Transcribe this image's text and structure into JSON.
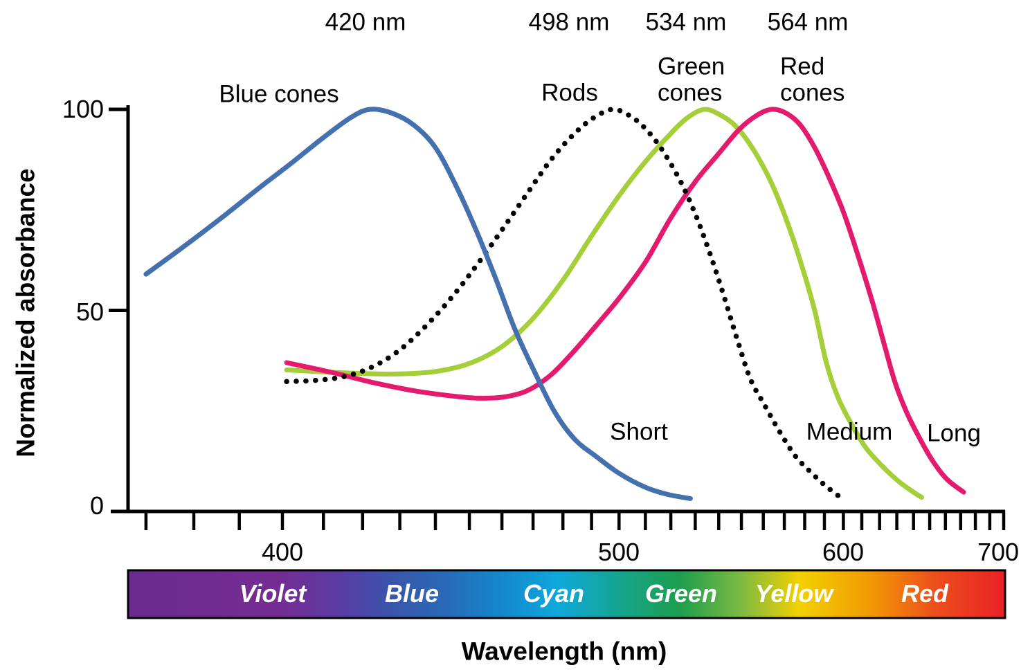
{
  "chart_data": {
    "type": "line",
    "title": "",
    "xlabel": "Wavelength (nm)",
    "ylabel": "Normalized absorbance",
    "x_axis": {
      "scale": "linear-in-inverse-wavelength",
      "major_ticks": [
        400,
        500,
        600,
        700
      ],
      "minor_tick_step_nm": 10,
      "minor_tick_start_nm": 370,
      "minor_tick_end_nm": 700,
      "grid": false
    },
    "y_axis": {
      "ticks": [
        100,
        50,
        0
      ],
      "range": [
        0,
        100
      ],
      "grid": false
    },
    "legend_position": "inline-labels",
    "series": [
      {
        "name": "Blue cones",
        "peak_label": "420 nm",
        "peak_nm": 420,
        "receptor_label": "Short",
        "color": "#4471ad",
        "line_style": "solid",
        "points": [
          [
            370,
            59
          ],
          [
            378,
            66
          ],
          [
            386,
            73
          ],
          [
            394,
            80
          ],
          [
            402,
            86.5
          ],
          [
            410,
            93
          ],
          [
            417,
            98
          ],
          [
            422,
            100
          ],
          [
            428,
            99
          ],
          [
            434,
            96
          ],
          [
            440,
            90.5
          ],
          [
            446,
            81
          ],
          [
            452,
            70
          ],
          [
            458,
            58
          ],
          [
            464,
            45.5
          ],
          [
            470,
            35.5
          ],
          [
            477,
            25
          ],
          [
            484,
            18
          ],
          [
            492,
            13.5
          ],
          [
            500,
            9.5
          ],
          [
            510,
            6
          ],
          [
            519,
            4.2
          ],
          [
            528,
            3.2
          ]
        ]
      },
      {
        "name": "Rods",
        "peak_label": "498 nm",
        "peak_nm": 498,
        "receptor_label": "",
        "color": "#000000",
        "line_style": "dotted",
        "points": [
          [
            401,
            32.3
          ],
          [
            408,
            32.6
          ],
          [
            415,
            33.5
          ],
          [
            422,
            35.7
          ],
          [
            429,
            39.5
          ],
          [
            436,
            45
          ],
          [
            444,
            52.5
          ],
          [
            452,
            61
          ],
          [
            460,
            70
          ],
          [
            468,
            79
          ],
          [
            476,
            87.5
          ],
          [
            484,
            94
          ],
          [
            491,
            98
          ],
          [
            498,
            100
          ],
          [
            505,
            98
          ],
          [
            511,
            94.5
          ],
          [
            517,
            89.5
          ],
          [
            524,
            82
          ],
          [
            530,
            74
          ],
          [
            536,
            64.5
          ],
          [
            542,
            54
          ],
          [
            548,
            43
          ],
          [
            554,
            33
          ],
          [
            560,
            27
          ],
          [
            567,
            20.5
          ],
          [
            575,
            14
          ],
          [
            583,
            9.8
          ],
          [
            591,
            6.2
          ],
          [
            600,
            3
          ]
        ]
      },
      {
        "name": "Green cones",
        "label_lines": [
          "Green",
          "cones"
        ],
        "peak_label": "534 nm",
        "peak_nm": 534,
        "receptor_label": "Medium",
        "color": "#a6ce39",
        "line_style": "solid",
        "points": [
          [
            401,
            35.2
          ],
          [
            410,
            34.7
          ],
          [
            420,
            34.3
          ],
          [
            430,
            34.2
          ],
          [
            440,
            34.8
          ],
          [
            450,
            36.8
          ],
          [
            460,
            41
          ],
          [
            470,
            48
          ],
          [
            480,
            57.5
          ],
          [
            490,
            68.5
          ],
          [
            500,
            78.5
          ],
          [
            510,
            87
          ],
          [
            520,
            94
          ],
          [
            527,
            98
          ],
          [
            534,
            100
          ],
          [
            541,
            98.5
          ],
          [
            548,
            95.5
          ],
          [
            556,
            89.5
          ],
          [
            564,
            81.5
          ],
          [
            571,
            72.5
          ],
          [
            578,
            62
          ],
          [
            585,
            50
          ],
          [
            591,
            37
          ],
          [
            597,
            28.5
          ],
          [
            604,
            22
          ],
          [
            612,
            16
          ],
          [
            621,
            11.5
          ],
          [
            631,
            7.5
          ],
          [
            640,
            4.8
          ],
          [
            645,
            3.5
          ]
        ]
      },
      {
        "name": "Red cones",
        "label_lines": [
          "Red",
          "cones"
        ],
        "peak_label": "564 nm",
        "peak_nm": 564,
        "receptor_label": "Long",
        "color": "#e41a6e",
        "line_style": "solid",
        "points": [
          [
            401,
            37
          ],
          [
            412,
            34.6
          ],
          [
            423,
            32
          ],
          [
            434,
            30
          ],
          [
            444,
            28.8
          ],
          [
            452,
            28.2
          ],
          [
            460,
            28.4
          ],
          [
            468,
            30
          ],
          [
            476,
            34
          ],
          [
            484,
            40
          ],
          [
            492,
            46.5
          ],
          [
            500,
            53
          ],
          [
            510,
            62
          ],
          [
            520,
            73
          ],
          [
            530,
            82
          ],
          [
            540,
            89
          ],
          [
            549,
            95
          ],
          [
            557,
            98.5
          ],
          [
            564,
            100
          ],
          [
            571,
            99
          ],
          [
            578,
            96
          ],
          [
            585,
            90.5
          ],
          [
            592,
            83.5
          ],
          [
            600,
            74.5
          ],
          [
            608,
            63.5
          ],
          [
            616,
            52
          ],
          [
            623,
            41
          ],
          [
            629,
            32
          ],
          [
            636,
            24.5
          ],
          [
            644,
            18
          ],
          [
            652,
            12.5
          ],
          [
            661,
            8
          ],
          [
            672,
            4.8
          ]
        ]
      }
    ],
    "spectrum_bar": {
      "labels": [
        "Violet",
        "Blue",
        "Cyan",
        "Green",
        "Yellow",
        "Red"
      ],
      "border_color": "#000000",
      "gradient_stops": [
        {
          "pos": 0.0,
          "color": "#6b2a8f"
        },
        {
          "pos": 0.17,
          "color": "#742c93"
        },
        {
          "pos": 0.24,
          "color": "#5b3ba2"
        },
        {
          "pos": 0.3,
          "color": "#3a55ab"
        },
        {
          "pos": 0.36,
          "color": "#2969b6"
        },
        {
          "pos": 0.42,
          "color": "#1585cb"
        },
        {
          "pos": 0.49,
          "color": "#0fa8dc"
        },
        {
          "pos": 0.56,
          "color": "#15a58f"
        },
        {
          "pos": 0.63,
          "color": "#1e9e4d"
        },
        {
          "pos": 0.7,
          "color": "#7fba42"
        },
        {
          "pos": 0.765,
          "color": "#f2d100"
        },
        {
          "pos": 0.845,
          "color": "#f29b04"
        },
        {
          "pos": 0.92,
          "color": "#ec4f1c"
        },
        {
          "pos": 1.0,
          "color": "#e92127"
        }
      ]
    }
  }
}
